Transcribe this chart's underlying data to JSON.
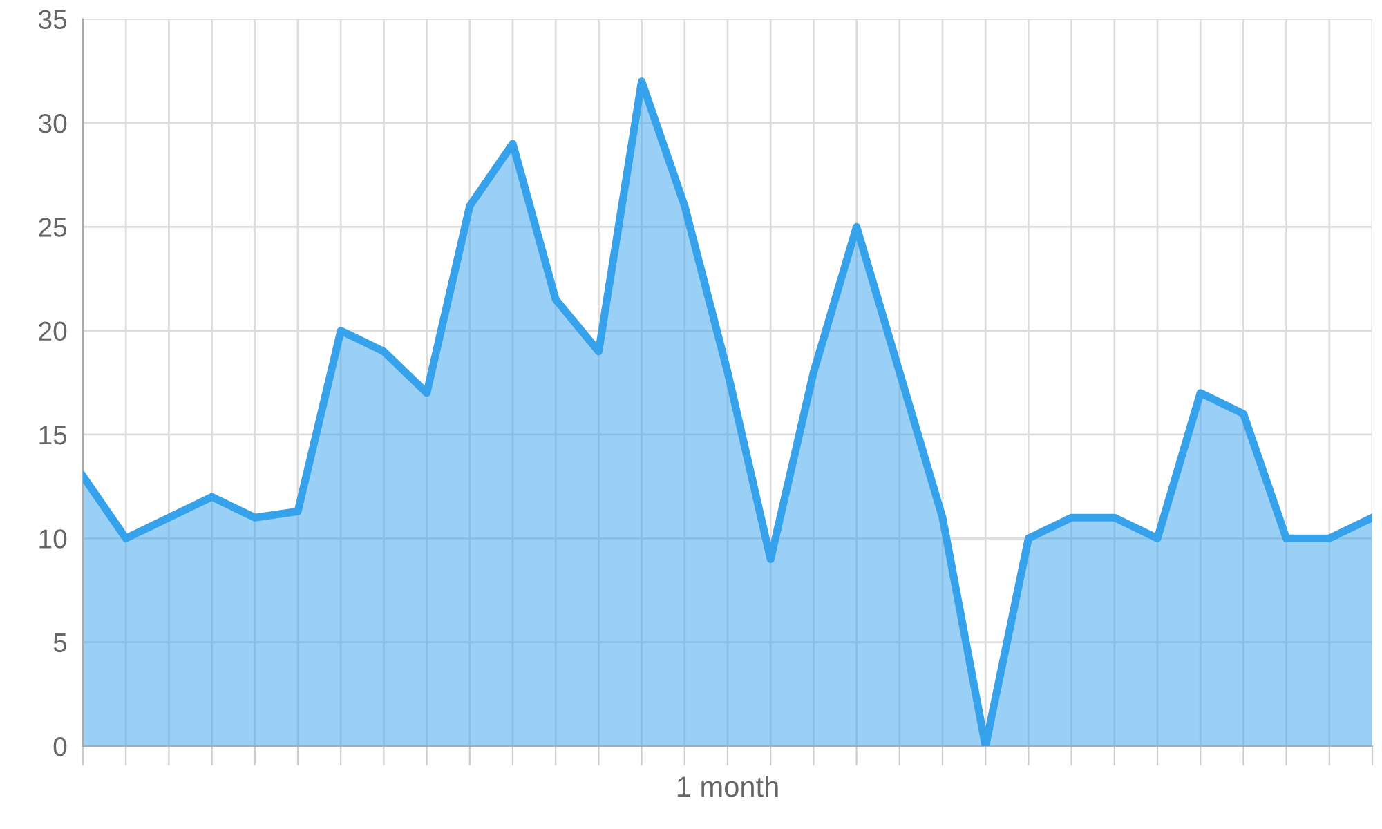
{
  "chart_data": {
    "type": "area",
    "xlabel": "1 month",
    "categories": [
      null,
      null,
      null,
      null,
      null,
      null,
      null,
      null,
      null,
      null,
      null,
      null,
      null,
      null,
      null,
      null,
      null,
      null,
      null,
      null,
      null,
      null,
      null,
      null,
      null,
      null,
      null,
      null,
      null,
      null,
      null
    ],
    "series": [
      {
        "color": "#36a2eb",
        "values": [
          13,
          10,
          11,
          12,
          11,
          11.3,
          20,
          19,
          17,
          26,
          29,
          21.5,
          19,
          32,
          26,
          18,
          9,
          18,
          25,
          18,
          11,
          0,
          10,
          11,
          11,
          10,
          17,
          16,
          10,
          10,
          11
        ]
      }
    ],
    "ylim": [
      0,
      35
    ],
    "yticks": [
      0,
      5,
      10,
      15,
      20,
      25,
      30,
      35
    ],
    "grid": true
  }
}
